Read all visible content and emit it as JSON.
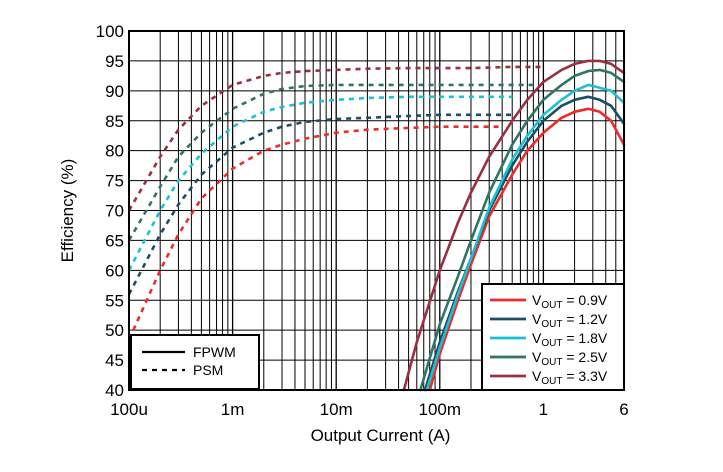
{
  "chart_data": {
    "type": "line",
    "xlabel": "Output Current (A)",
    "ylabel": "Efficiency (%)",
    "x_scale": "log",
    "xlim": [
      0.0001,
      6
    ],
    "ylim": [
      40,
      100
    ],
    "x_ticks": [
      {
        "value": 0.0001,
        "label": "100u"
      },
      {
        "value": 0.001,
        "label": "1m"
      },
      {
        "value": 0.01,
        "label": "10m"
      },
      {
        "value": 0.1,
        "label": "100m"
      },
      {
        "value": 1,
        "label": "1"
      },
      {
        "value": 6,
        "label": "6"
      }
    ],
    "y_ticks": [
      40,
      45,
      50,
      55,
      60,
      65,
      70,
      75,
      80,
      85,
      90,
      95,
      100
    ],
    "grid": true,
    "mode_legend": {
      "position": "bottom-left",
      "entries": [
        {
          "label": "FPWM",
          "dash": "solid"
        },
        {
          "label": "PSM",
          "dash": "dashed"
        }
      ]
    },
    "series_legend": {
      "position": "bottom-right",
      "entries": [
        {
          "prefix": "V",
          "sub": "OUT",
          "suffix": " = 0.9V",
          "color": "#ee2b2b"
        },
        {
          "prefix": "V",
          "sub": "OUT",
          "suffix": " = 1.2V",
          "color": "#1c4e63"
        },
        {
          "prefix": "V",
          "sub": "OUT",
          "suffix": " = 1.8V",
          "color": "#19c0d6"
        },
        {
          "prefix": "V",
          "sub": "OUT",
          "suffix": " = 2.5V",
          "color": "#2f7464"
        },
        {
          "prefix": "V",
          "sub": "OUT",
          "suffix": " = 3.3V",
          "color": "#9b2f3f"
        }
      ]
    },
    "series": [
      {
        "name": "VOUT = 0.9V",
        "mode": "PSM",
        "color": "#ee2b2b",
        "x": [
          0.00011,
          0.0002,
          0.0003,
          0.0005,
          0.001,
          0.002,
          0.003,
          0.005,
          0.01,
          0.02,
          0.05,
          0.1,
          0.2,
          0.4
        ],
        "y": [
          50,
          60,
          66,
          72,
          77,
          80,
          81,
          82,
          83,
          83.5,
          83.8,
          84,
          84,
          84
        ]
      },
      {
        "name": "VOUT = 1.2V",
        "mode": "PSM",
        "color": "#1c4e63",
        "x": [
          0.0001,
          0.0002,
          0.0003,
          0.0005,
          0.001,
          0.002,
          0.003,
          0.005,
          0.01,
          0.02,
          0.05,
          0.1,
          0.2,
          0.5
        ],
        "y": [
          56,
          66,
          71,
          76,
          80.5,
          83,
          84,
          84.8,
          85.3,
          85.5,
          85.8,
          86,
          86,
          86
        ]
      },
      {
        "name": "VOUT = 1.8V",
        "mode": "PSM",
        "color": "#19c0d6",
        "x": [
          0.0001,
          0.0002,
          0.0003,
          0.0005,
          0.001,
          0.002,
          0.003,
          0.005,
          0.01,
          0.02,
          0.05,
          0.1,
          0.2,
          0.5
        ],
        "y": [
          60,
          70,
          75,
          79.5,
          84,
          86.5,
          87.3,
          88,
          88.5,
          88.8,
          89,
          89,
          89,
          89
        ]
      },
      {
        "name": "VOUT = 2.5V",
        "mode": "PSM",
        "color": "#2f7464",
        "x": [
          0.0001,
          0.0002,
          0.0003,
          0.0005,
          0.001,
          0.002,
          0.003,
          0.005,
          0.01,
          0.02,
          0.05,
          0.1,
          0.2,
          0.5,
          0.8
        ],
        "y": [
          65,
          74,
          79,
          83,
          87,
          89.5,
          90.3,
          90.8,
          91,
          91,
          91,
          91,
          91,
          91,
          91
        ]
      },
      {
        "name": "VOUT = 3.3V",
        "mode": "PSM",
        "color": "#9b2f3f",
        "x": [
          0.0001,
          0.0002,
          0.0003,
          0.0005,
          0.001,
          0.002,
          0.003,
          0.005,
          0.01,
          0.02,
          0.05,
          0.1,
          0.2,
          0.5,
          1
        ],
        "y": [
          70,
          79,
          83.5,
          87.5,
          91,
          92.5,
          93,
          93.3,
          93.5,
          93.7,
          93.8,
          93.8,
          93.8,
          94,
          94
        ]
      },
      {
        "name": "VOUT = 0.9V",
        "mode": "FPWM",
        "color": "#ee2b2b",
        "x": [
          0.08,
          0.1,
          0.15,
          0.2,
          0.3,
          0.5,
          0.7,
          1,
          1.5,
          2,
          2.7,
          3.5,
          4.5,
          6
        ],
        "y": [
          40,
          46,
          55,
          61,
          69,
          76,
          80,
          83,
          85.5,
          86.5,
          87,
          86.5,
          85,
          81
        ]
      },
      {
        "name": "VOUT = 1.2V",
        "mode": "FPWM",
        "color": "#1c4e63",
        "x": [
          0.072,
          0.1,
          0.15,
          0.2,
          0.3,
          0.5,
          0.7,
          1,
          1.5,
          2,
          2.7,
          3.5,
          4.5,
          6
        ],
        "y": [
          40,
          48,
          56.5,
          62,
          70,
          77.5,
          81.5,
          85,
          87.5,
          88.5,
          89,
          88.5,
          87.5,
          84.5
        ]
      },
      {
        "name": "VOUT = 1.8V",
        "mode": "FPWM",
        "color": "#19c0d6",
        "x": [
          0.075,
          0.1,
          0.15,
          0.2,
          0.3,
          0.5,
          0.7,
          1,
          1.5,
          2,
          2.7,
          3.5,
          4.5,
          6
        ],
        "y": [
          40,
          47,
          56,
          62,
          70.5,
          78.5,
          82.5,
          86,
          88.5,
          90,
          91,
          90.5,
          90,
          88
        ]
      },
      {
        "name": "VOUT = 2.5V",
        "mode": "FPWM",
        "color": "#2f7464",
        "x": [
          0.065,
          0.1,
          0.15,
          0.2,
          0.3,
          0.5,
          0.7,
          1,
          1.5,
          2,
          2.7,
          3.5,
          4.5,
          6
        ],
        "y": [
          40,
          51,
          59,
          65,
          73,
          81,
          85,
          88.5,
          91,
          92.5,
          93.3,
          93.5,
          93,
          91.5
        ]
      },
      {
        "name": "VOUT = 3.3V",
        "mode": "FPWM",
        "color": "#9b2f3f",
        "x": [
          0.045,
          0.06,
          0.1,
          0.15,
          0.2,
          0.3,
          0.5,
          0.7,
          1,
          1.5,
          2,
          2.7,
          3.5,
          4.5,
          6
        ],
        "y": [
          40,
          48,
          60,
          68,
          73,
          79,
          85,
          88.5,
          91.5,
          93.5,
          94.5,
          95,
          95,
          94.5,
          93
        ]
      }
    ]
  }
}
